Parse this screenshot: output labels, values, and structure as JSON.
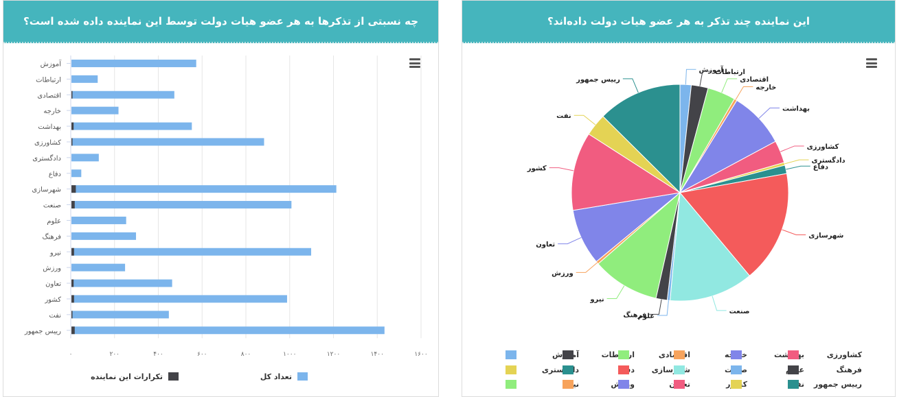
{
  "bar_panel": {
    "title": "چه نسبتی از تذکرها به هر عضو هیات دولت توسط این نماینده داده شده است؟",
    "menu_icon": "hamburger-icon"
  },
  "pie_panel": {
    "title": "این نماینده چند تذکر به هر عضو هیات دولت داده‌اند؟",
    "menu_icon": "hamburger-icon"
  },
  "chart_data": [
    {
      "type": "bar",
      "orientation": "horizontal",
      "categories": [
        "آموزش",
        "ارتباطات",
        "اقتصادی",
        "خارجه",
        "بهداشت",
        "کشاورزی",
        "دادگستری",
        "دفاع",
        "شهرسازی",
        "صنعت",
        "علوم",
        "فرهنگ",
        "نیرو",
        "ورزش",
        "تعاون",
        "کشور",
        "نفت",
        "رییس جمهور"
      ],
      "series": [
        {
          "name": "تعداد کل",
          "color": "#7cb5ec",
          "values": [
            570,
            120,
            470,
            215,
            550,
            880,
            125,
            45,
            1210,
            1005,
            250,
            295,
            1095,
            245,
            460,
            985,
            445,
            1430
          ]
        },
        {
          "name": "تکرارات این نماینده",
          "color": "#434348",
          "values": [
            0,
            0,
            4,
            0,
            10,
            4,
            0,
            0,
            20,
            15,
            0,
            0,
            12,
            0,
            10,
            12,
            2,
            15
          ]
        }
      ],
      "x_ticks": [
        "۰",
        "۲۰۰",
        "۴۰۰",
        "۶۰۰",
        "۸۰۰",
        "۱۰۰۰",
        "۱۲۰۰",
        "۱۴۰۰",
        "۱۶۰۰"
      ],
      "xlim": [
        0,
        1600
      ],
      "grid": true,
      "legend_position": "bottom",
      "legend": [
        {
          "label": "تعداد کل",
          "color": "#7cb5ec"
        },
        {
          "label": "تکرارات این نماینده",
          "color": "#434348"
        }
      ]
    },
    {
      "type": "pie",
      "slices": [
        {
          "label": "آموزش",
          "value": 2,
          "color": "#7cb5ec"
        },
        {
          "label": "ارتباطات",
          "value": 3,
          "color": "#434348"
        },
        {
          "label": "اقتصادی",
          "value": 5,
          "color": "#90ed7d"
        },
        {
          "label": "خارجه",
          "value": 0.5,
          "color": "#f7a35c"
        },
        {
          "label": "بهداشت",
          "value": 10,
          "color": "#8085e9"
        },
        {
          "label": "کشاورزی",
          "value": 4,
          "color": "#f15c80"
        },
        {
          "label": "دادگستری",
          "value": 0.5,
          "color": "#e4d354"
        },
        {
          "label": "دفاع",
          "value": 1.5,
          "color": "#2b908f"
        },
        {
          "label": "شهرسازی",
          "value": 20,
          "color": "#f45b5b"
        },
        {
          "label": "صنعت",
          "value": 15,
          "color": "#91e8e1"
        },
        {
          "label": "علوم",
          "value": 0.5,
          "color": "#7cb5ec"
        },
        {
          "label": "فرهنگ",
          "value": 2,
          "color": "#434348"
        },
        {
          "label": "نیرو",
          "value": 12,
          "color": "#90ed7d"
        },
        {
          "label": "ورزش",
          "value": 0.5,
          "color": "#f7a35c"
        },
        {
          "label": "تعاون",
          "value": 10,
          "color": "#8085e9"
        },
        {
          "label": "کشور",
          "value": 14,
          "color": "#f15c80"
        },
        {
          "label": "نفت",
          "value": 4,
          "color": "#e4d354"
        },
        {
          "label": "رییس جمهور",
          "value": 15,
          "color": "#2b908f"
        }
      ],
      "legend_position": "bottom"
    }
  ]
}
